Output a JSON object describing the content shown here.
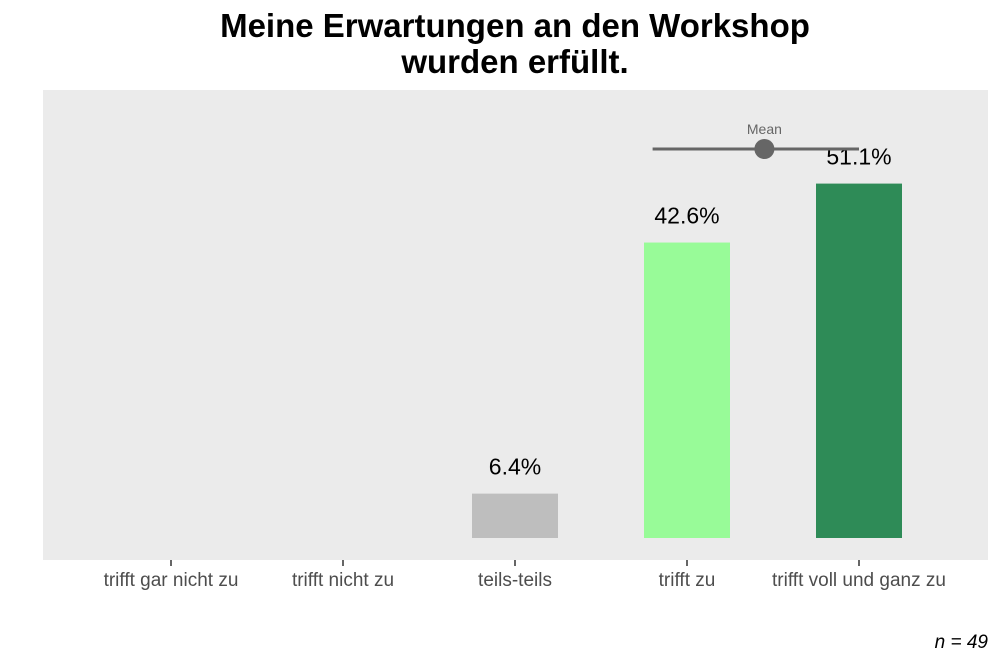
{
  "chart_data": {
    "type": "bar",
    "title": "Meine Erwartungen an den Workshop\nwurden erfüllt.",
    "categories": [
      "trifft gar nicht zu",
      "trifft nicht zu",
      "teils-teils",
      "trifft zu",
      "trifft voll und ganz zu"
    ],
    "values": [
      0,
      0,
      6.4,
      42.6,
      51.1
    ],
    "data_labels": [
      "",
      "",
      "6.4%",
      "42.6%",
      "51.1%"
    ],
    "colors": [
      "#bebebe",
      "#bebebe",
      "#bebebe",
      "#98fb98",
      "#2e8b57"
    ],
    "ylim": [
      0,
      62
    ],
    "xlabel": "",
    "ylabel": "",
    "grid": false,
    "panel_background": "#ebebeb",
    "mean": {
      "label": "Mean",
      "value": 4.45,
      "low": 3.8,
      "high": 5.0,
      "scale": [
        1,
        5
      ],
      "color": "#666666"
    },
    "caption": "n = 49"
  }
}
